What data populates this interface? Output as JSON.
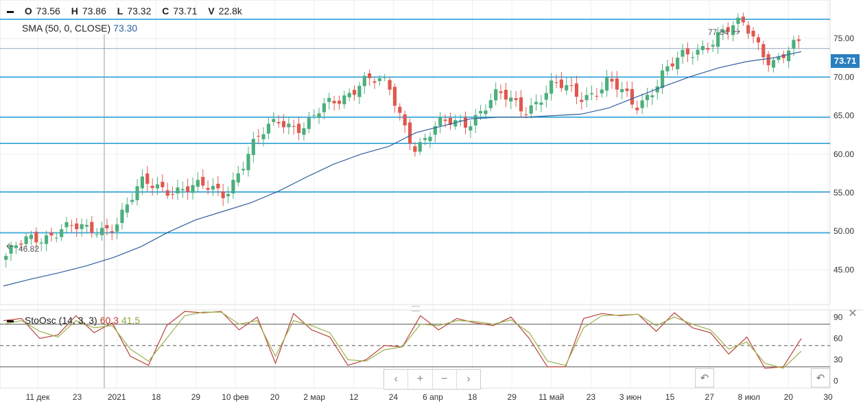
{
  "legend": {
    "o_label": "O",
    "o": "73.56",
    "h_label": "H",
    "h": "73.86",
    "l_label": "L",
    "l": "73.32",
    "c_label": "C",
    "c": "73.71",
    "v_label": "V",
    "v": "22.8k",
    "sma_label": "SMA (50, 0, CLOSE)",
    "sma_value": "73.30",
    "sto_label": "StoOsc (14, 3, 3)",
    "sto_k": "60.3",
    "sto_d": "41.5"
  },
  "last_price_tag": "73.71",
  "colors": {
    "up": "#4caf7d",
    "down": "#e0584f",
    "sma": "#2f5f9e",
    "hline": "#1a9ad6",
    "k": "#b8423a",
    "d": "#9cb04a",
    "tag": "#2a7fc1"
  },
  "controls": {
    "prev": "‹",
    "zoom_in": "+",
    "zoom_out": "−",
    "next": "›",
    "reset": "↶"
  },
  "chart_data": [
    {
      "type": "candlestick",
      "title": "",
      "ylim": [
        40.5,
        80
      ],
      "y_ticks": [
        "75.00",
        "70.00",
        "65.00",
        "60.00",
        "55.00",
        "50.00",
        "45.00"
      ],
      "x_ticks": [
        "11 дек",
        "23",
        "2021",
        "18",
        "29",
        "10 фев",
        "20",
        "2 мар",
        "12",
        "24",
        "6 апр",
        "18",
        "29",
        "11 май",
        "23",
        "3 июн",
        "15",
        "27",
        "8 июл",
        "20",
        "30"
      ],
      "horizontal_levels": [
        77.5,
        73.71,
        70.0,
        64.8,
        61.4,
        55.1,
        49.8
      ],
      "annotations": [
        {
          "text": "77.84",
          "value": 77.84
        },
        {
          "text": "46.82",
          "value": 46.82
        }
      ],
      "series": [
        {
          "name": "SMA (50, 0, CLOSE)",
          "kind": "line",
          "values": [
            42.9,
            43.8,
            44.6,
            45.5,
            46.6,
            48.0,
            49.9,
            51.5,
            52.6,
            53.7,
            55.2,
            57.0,
            58.7,
            60.0,
            61.0,
            62.8,
            63.7,
            64.6,
            64.8,
            64.8,
            65.0,
            65.2,
            66.0,
            67.4,
            68.8,
            70.1,
            71.2,
            72.0,
            72.5,
            73.3
          ]
        },
        {
          "name": "close",
          "kind": "candles",
          "values": [
            46.8,
            48.8,
            50.8,
            49.5,
            51.5,
            55.7,
            56.0,
            55.2,
            55.4,
            60.5,
            64.8,
            63.5,
            66.8,
            69.8,
            68.4,
            61.1,
            63.6,
            64.9,
            67.2,
            66.3,
            68.5,
            67.8,
            69.2,
            66.1,
            70.5,
            72.6,
            75.9,
            76.3,
            72.5,
            73.71
          ]
        }
      ]
    },
    {
      "type": "line",
      "title": "",
      "ylim": [
        -10,
        100
      ],
      "y_ticks": [
        "90",
        "60",
        "30",
        "0"
      ],
      "levels": [
        80,
        50,
        20
      ],
      "series": [
        {
          "name": "K",
          "values": [
            85,
            88,
            60,
            65,
            92,
            68,
            82,
            35,
            22,
            78,
            98,
            96,
            98,
            72,
            90,
            25,
            95,
            72,
            62,
            22,
            30,
            50,
            48,
            92,
            72,
            88,
            82,
            78,
            90,
            60,
            20,
            20,
            88,
            95,
            92,
            94,
            70,
            96,
            75,
            68,
            38,
            62,
            18,
            20,
            60
          ]
        },
        {
          "name": "D",
          "values": [
            80,
            85,
            70,
            62,
            85,
            75,
            78,
            45,
            28,
            60,
            92,
            97,
            97,
            80,
            85,
            35,
            85,
            78,
            68,
            30,
            28,
            44,
            48,
            80,
            78,
            85,
            84,
            80,
            86,
            68,
            28,
            22,
            75,
            92,
            93,
            94,
            78,
            90,
            80,
            72,
            45,
            55,
            25,
            18,
            42
          ]
        }
      ]
    }
  ]
}
